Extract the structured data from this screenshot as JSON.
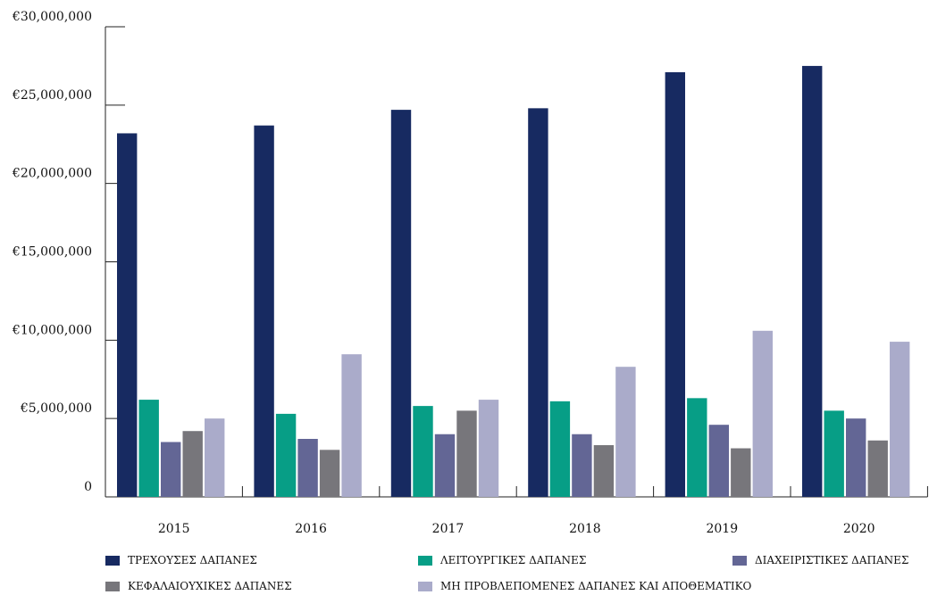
{
  "chart_data": {
    "type": "bar",
    "categories": [
      "2015",
      "2016",
      "2017",
      "2018",
      "2019",
      "2020"
    ],
    "y_ticks": [
      "0",
      "€5,000,000",
      "€10,000,000",
      "€15,000,000",
      "€20,000,000",
      "€25,000,000",
      "€30,000,000"
    ],
    "ylim": [
      0,
      30000000
    ],
    "grid": false,
    "legend_position": "bottom",
    "series": [
      {
        "name": "ΤΡΕΧΟΥΣΕΣ ΔΑΠΑΝΕΣ",
        "color": "#172a61",
        "values": [
          23200000,
          23700000,
          24700000,
          24800000,
          27100000,
          27500000
        ]
      },
      {
        "name": "ΛΕΙΤΟΥΡΓΙΚΕΣ ΔΑΠΑΝΕΣ",
        "color": "#079e86",
        "values": [
          6200000,
          5300000,
          5800000,
          6100000,
          6300000,
          5500000
        ]
      },
      {
        "name": "ΔΙΑΧΕΙΡΙΣΤΙΚΕΣ ΔΑΠΑΝΕΣ",
        "color": "#636695",
        "values": [
          3500000,
          3700000,
          4000000,
          4000000,
          4600000,
          5000000
        ]
      },
      {
        "name": "ΚΕΦΑΛΑΙΟΥΧΙΚΕΣ ΔΑΠΑΝΕΣ",
        "color": "#77767b",
        "values": [
          4200000,
          3000000,
          5500000,
          3300000,
          3100000,
          3600000
        ]
      },
      {
        "name": "ΜΗ ΠΡΟΒΛΕΠΟΜΕΝΕΣ ΔΑΠΑΝΕΣ ΚΑΙ ΑΠΟΘΕΜΑΤΙΚΟ",
        "color": "#aaabca",
        "values": [
          5000000,
          9100000,
          6200000,
          8300000,
          10600000,
          9900000
        ]
      }
    ]
  }
}
